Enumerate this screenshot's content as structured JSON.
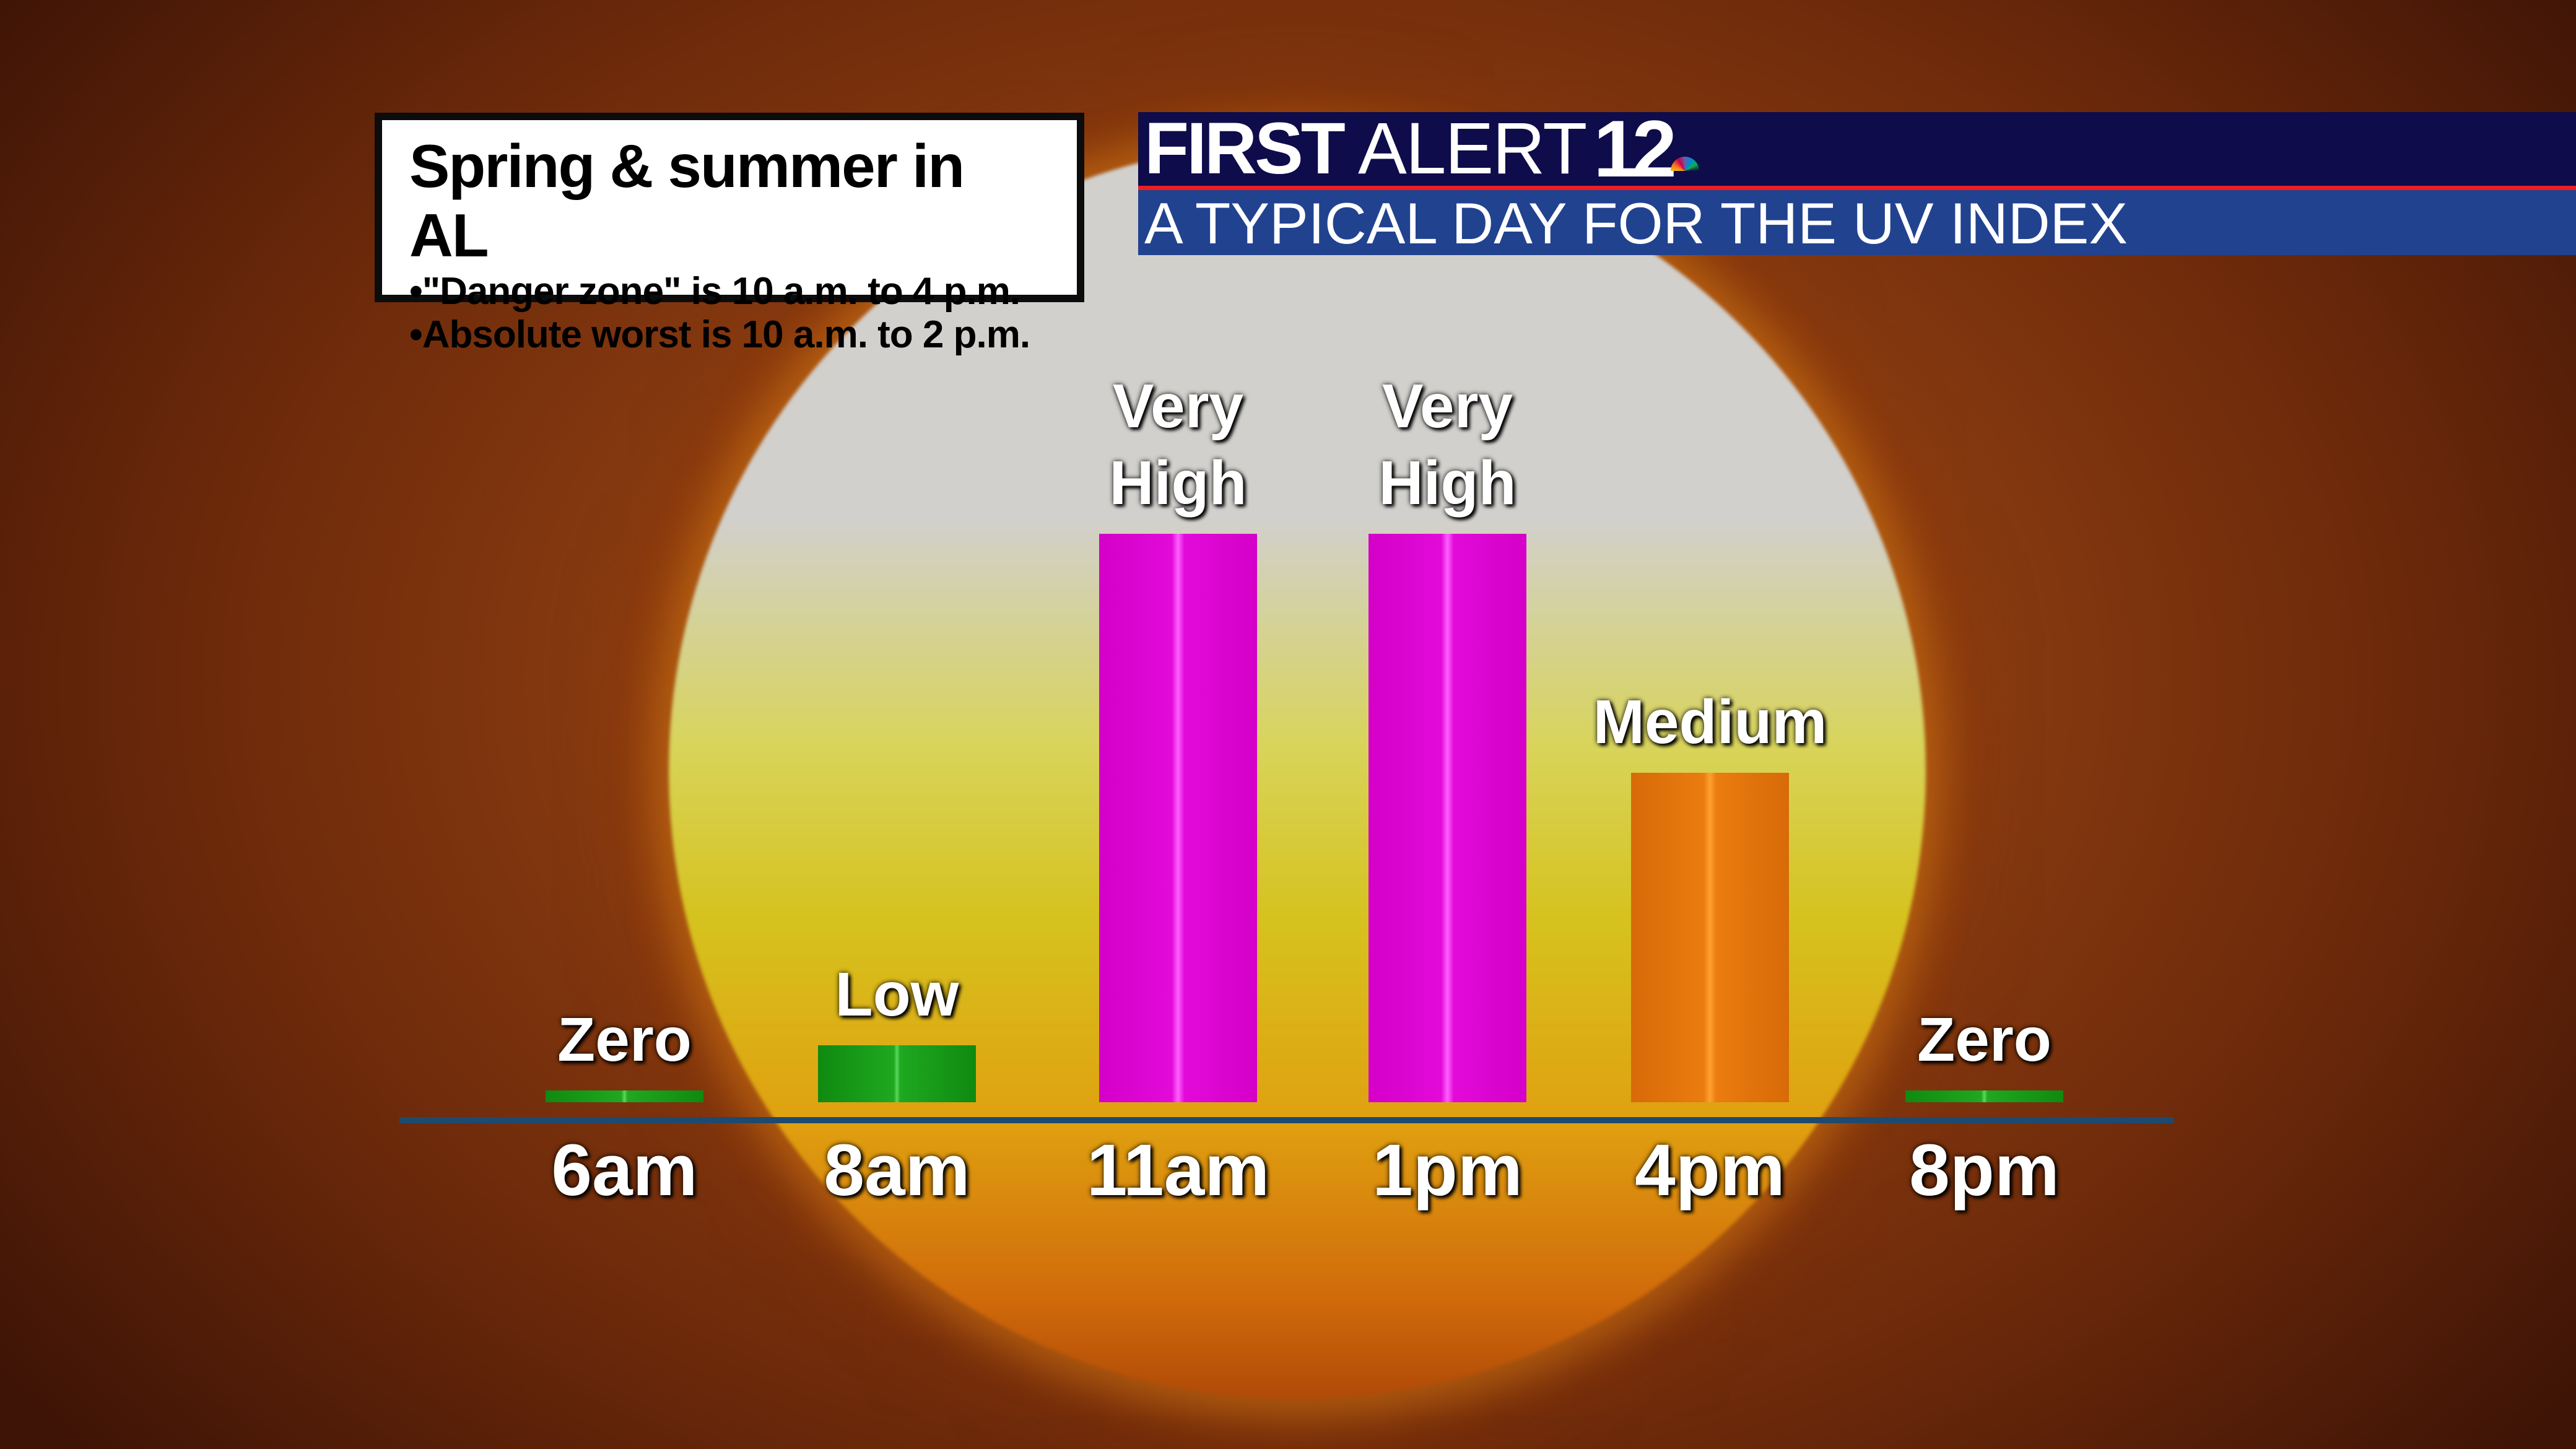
{
  "info_box": {
    "title": "Spring & summer in AL",
    "bullets": [
      "•\"Danger zone\" is 10 a.m. to 4 p.m.",
      "•Absolute worst is 10 a.m. to 2 p.m."
    ]
  },
  "header": {
    "brand_bold": "FIRST",
    "brand_light": " ALERT",
    "brand_number": "12",
    "subtitle": "A TYPICAL DAY FOR THE UV INDEX"
  },
  "colors": {
    "header_navy": "#0e0c4a",
    "header_blue": "#21428f",
    "header_rule": "#ee1c24",
    "low": "#1fa820",
    "very_high": "#e20ad8",
    "medium": "#ea7c10",
    "axis": "#1e4a70"
  },
  "chart_data": {
    "type": "bar",
    "title": "A TYPICAL DAY FOR THE UV INDEX",
    "categories": [
      "6am",
      "8am",
      "11am",
      "1pm",
      "4pm",
      "8pm"
    ],
    "levels": [
      "Zero",
      "Low",
      "Very High",
      "Very High",
      "Medium",
      "Zero"
    ],
    "level_label_lines": [
      [
        "Zero"
      ],
      [
        "Low"
      ],
      [
        "Very",
        "High"
      ],
      [
        "Very",
        "High"
      ],
      [
        "Medium"
      ],
      [
        "Zero"
      ]
    ],
    "values": [
      0,
      0.1,
      1,
      1,
      0.58,
      0
    ],
    "bar_colors": [
      "#1fa820",
      "#1fa820",
      "#e20ad8",
      "#e20ad8",
      "#ea7c10",
      "#1fa820"
    ],
    "grid": false,
    "legend": "none"
  }
}
